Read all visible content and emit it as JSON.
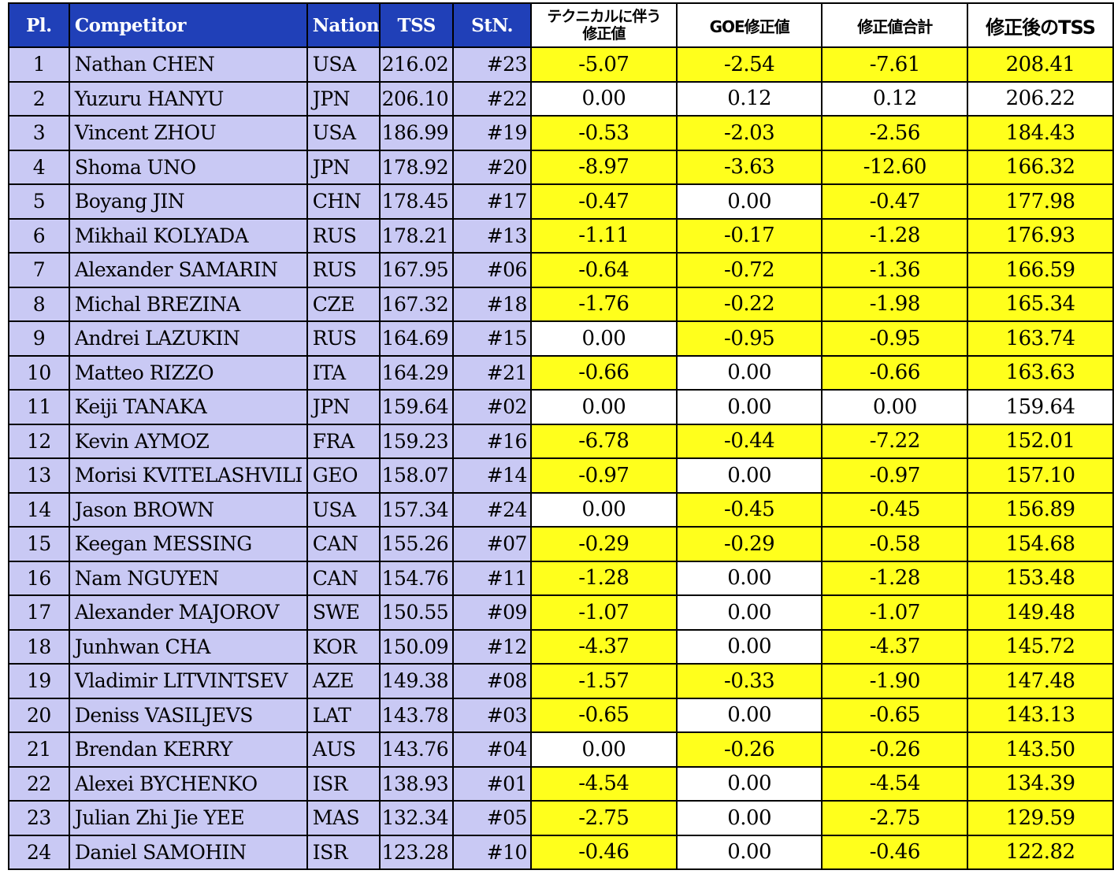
{
  "headers": {
    "pl": "Pl.",
    "competitor": "Competitor",
    "nation": "Nation",
    "tss": "TSS",
    "stn": "StN.",
    "technical_adj_line1": "テクニカルに伴う",
    "technical_adj_line2": "修正値",
    "goe_adj": "GOE修正値",
    "total_adj": "修正値合計",
    "adjusted_tss": "修正後のTSS"
  },
  "colors": {
    "header_blue": "#2040b8",
    "row_lavender": "#c9c9f4",
    "highlight_yellow": "#ffff1c"
  },
  "rows": [
    {
      "pl": "1",
      "name": "Nathan CHEN",
      "nation": "USA",
      "tss": "216.02",
      "stn": "#23",
      "tech": "-5.07",
      "goe": "-2.54",
      "total": "-7.61",
      "adj": "208.41"
    },
    {
      "pl": "2",
      "name": "Yuzuru HANYU",
      "nation": "JPN",
      "tss": "206.10",
      "stn": "#22",
      "tech": "0.00",
      "goe": "0.12",
      "total": "0.12",
      "adj": "206.22"
    },
    {
      "pl": "3",
      "name": "Vincent ZHOU",
      "nation": "USA",
      "tss": "186.99",
      "stn": "#19",
      "tech": "-0.53",
      "goe": "-2.03",
      "total": "-2.56",
      "adj": "184.43"
    },
    {
      "pl": "4",
      "name": "Shoma UNO",
      "nation": "JPN",
      "tss": "178.92",
      "stn": "#20",
      "tech": "-8.97",
      "goe": "-3.63",
      "total": "-12.60",
      "adj": "166.32"
    },
    {
      "pl": "5",
      "name": "Boyang JIN",
      "nation": "CHN",
      "tss": "178.45",
      "stn": "#17",
      "tech": "-0.47",
      "goe": "0.00",
      "total": "-0.47",
      "adj": "177.98"
    },
    {
      "pl": "6",
      "name": "Mikhail KOLYADA",
      "nation": "RUS",
      "tss": "178.21",
      "stn": "#13",
      "tech": "-1.11",
      "goe": "-0.17",
      "total": "-1.28",
      "adj": "176.93"
    },
    {
      "pl": "7",
      "name": "Alexander SAMARIN",
      "nation": "RUS",
      "tss": "167.95",
      "stn": "#06",
      "tech": "-0.64",
      "goe": "-0.72",
      "total": "-1.36",
      "adj": "166.59"
    },
    {
      "pl": "8",
      "name": "Michal BREZINA",
      "nation": "CZE",
      "tss": "167.32",
      "stn": "#18",
      "tech": "-1.76",
      "goe": "-0.22",
      "total": "-1.98",
      "adj": "165.34"
    },
    {
      "pl": "9",
      "name": "Andrei LAZUKIN",
      "nation": "RUS",
      "tss": "164.69",
      "stn": "#15",
      "tech": "0.00",
      "goe": "-0.95",
      "total": "-0.95",
      "adj": "163.74"
    },
    {
      "pl": "10",
      "name": "Matteo RIZZO",
      "nation": "ITA",
      "tss": "164.29",
      "stn": "#21",
      "tech": "-0.66",
      "goe": "0.00",
      "total": "-0.66",
      "adj": "163.63"
    },
    {
      "pl": "11",
      "name": "Keiji TANAKA",
      "nation": "JPN",
      "tss": "159.64",
      "stn": "#02",
      "tech": "0.00",
      "goe": "0.00",
      "total": "0.00",
      "adj": "159.64"
    },
    {
      "pl": "12",
      "name": "Kevin AYMOZ",
      "nation": "FRA",
      "tss": "159.23",
      "stn": "#16",
      "tech": "-6.78",
      "goe": "-0.44",
      "total": "-7.22",
      "adj": "152.01"
    },
    {
      "pl": "13",
      "name": "Morisi KVITELASHVILI",
      "nation": "GEO",
      "tss": "158.07",
      "stn": "#14",
      "tech": "-0.97",
      "goe": "0.00",
      "total": "-0.97",
      "adj": "157.10"
    },
    {
      "pl": "14",
      "name": "Jason BROWN",
      "nation": "USA",
      "tss": "157.34",
      "stn": "#24",
      "tech": "0.00",
      "goe": "-0.45",
      "total": "-0.45",
      "adj": "156.89"
    },
    {
      "pl": "15",
      "name": "Keegan MESSING",
      "nation": "CAN",
      "tss": "155.26",
      "stn": "#07",
      "tech": "-0.29",
      "goe": "-0.29",
      "total": "-0.58",
      "adj": "154.68"
    },
    {
      "pl": "16",
      "name": "Nam NGUYEN",
      "nation": "CAN",
      "tss": "154.76",
      "stn": "#11",
      "tech": "-1.28",
      "goe": "0.00",
      "total": "-1.28",
      "adj": "153.48"
    },
    {
      "pl": "17",
      "name": "Alexander MAJOROV",
      "nation": "SWE",
      "tss": "150.55",
      "stn": "#09",
      "tech": "-1.07",
      "goe": "0.00",
      "total": "-1.07",
      "adj": "149.48"
    },
    {
      "pl": "18",
      "name": "Junhwan CHA",
      "nation": "KOR",
      "tss": "150.09",
      "stn": "#12",
      "tech": "-4.37",
      "goe": "0.00",
      "total": "-4.37",
      "adj": "145.72"
    },
    {
      "pl": "19",
      "name": "Vladimir LITVINTSEV",
      "nation": "AZE",
      "tss": "149.38",
      "stn": "#08",
      "tech": "-1.57",
      "goe": "-0.33",
      "total": "-1.90",
      "adj": "147.48"
    },
    {
      "pl": "20",
      "name": "Deniss VASILJEVS",
      "nation": "LAT",
      "tss": "143.78",
      "stn": "#03",
      "tech": "-0.65",
      "goe": "0.00",
      "total": "-0.65",
      "adj": "143.13"
    },
    {
      "pl": "21",
      "name": "Brendan KERRY",
      "nation": "AUS",
      "tss": "143.76",
      "stn": "#04",
      "tech": "0.00",
      "goe": "-0.26",
      "total": "-0.26",
      "adj": "143.50"
    },
    {
      "pl": "22",
      "name": "Alexei BYCHENKO",
      "nation": "ISR",
      "tss": "138.93",
      "stn": "#01",
      "tech": "-4.54",
      "goe": "0.00",
      "total": "-4.54",
      "adj": "134.39"
    },
    {
      "pl": "23",
      "name": "Julian Zhi Jie YEE",
      "nation": "MAS",
      "tss": "132.34",
      "stn": "#05",
      "tech": "-2.75",
      "goe": "0.00",
      "total": "-2.75",
      "adj": "129.59"
    },
    {
      "pl": "24",
      "name": "Daniel SAMOHIN",
      "nation": "ISR",
      "tss": "123.28",
      "stn": "#10",
      "tech": "-0.46",
      "goe": "0.00",
      "total": "-0.46",
      "adj": "122.82"
    }
  ]
}
